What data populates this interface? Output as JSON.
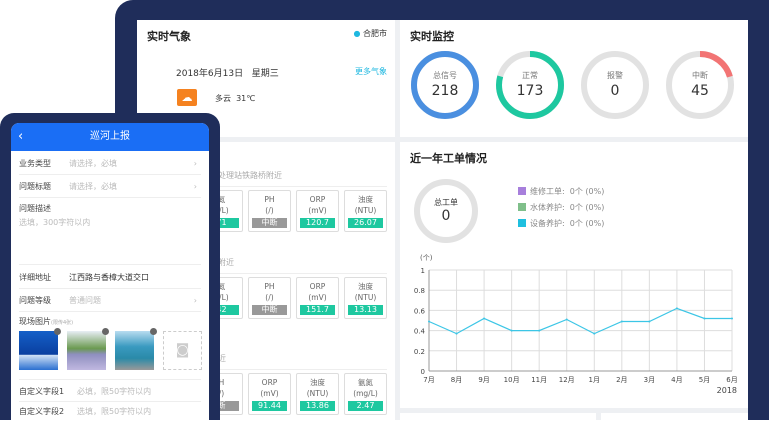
{
  "weather": {
    "title": "实时气象",
    "city": "合肥市",
    "date": "2018年6月13日",
    "weekday": "星期三",
    "more": "更多气象",
    "condition": "多云",
    "temp": "31℃"
  },
  "monitor": {
    "title": "实时监控",
    "rings": [
      {
        "label": "总信号",
        "value": "218",
        "fraction": 1,
        "color": "#4a8fe0"
      },
      {
        "label": "正常",
        "value": "173",
        "fraction": 0.794,
        "color": "#1ec8a0"
      },
      {
        "label": "报警",
        "value": "0",
        "fraction": 0,
        "color": "#e0e0e0"
      },
      {
        "label": "中断",
        "value": "45",
        "fraction": 0.206,
        "color": "#f27474"
      }
    ]
  },
  "water": {
    "stations": [
      {
        "name": "河处理站铁路桥附近",
        "cards": [
          {
            "n": "氮",
            "u": "g/L)",
            "v": "71",
            "off": false
          },
          {
            "n": "PH",
            "u": "(/)",
            "v": "中断",
            "off": true
          },
          {
            "n": "ORP",
            "u": "(mV)",
            "v": "120.7",
            "off": false
          },
          {
            "n": "浊度",
            "u": "(NTU)",
            "v": "26.07",
            "off": false
          }
        ]
      },
      {
        "name": "桥附近",
        "cards": [
          {
            "n": "氮",
            "u": "g/L)",
            "v": "42",
            "off": false
          },
          {
            "n": "PH",
            "u": "(/)",
            "v": "中断",
            "off": true
          },
          {
            "n": "ORP",
            "u": "(mV)",
            "v": "151.7",
            "off": false
          },
          {
            "n": "浊度",
            "u": "(NTU)",
            "v": "13.13",
            "off": false
          }
        ]
      },
      {
        "name": "闸",
        "sub": "附近",
        "cards": [
          {
            "n": "H",
            "u": "/)",
            "v": "断",
            "off": true
          },
          {
            "n": "ORP",
            "u": "(mV)",
            "v": "91.44",
            "off": false
          },
          {
            "n": "浊度",
            "u": "(NTU)",
            "v": "13.86",
            "off": false
          },
          {
            "n": "氨氮",
            "u": "(mg/L)",
            "v": "2.47",
            "off": false
          }
        ]
      }
    ]
  },
  "orders": {
    "title": "近一年工单情况",
    "total_label": "总工单",
    "total": "0",
    "legend": [
      {
        "label": "维修工单:",
        "value": "0个 (0%)",
        "color": "#a77fdc"
      },
      {
        "label": "水体养护:",
        "value": "0个 (0%)",
        "color": "#7fbf8a"
      },
      {
        "label": "设备养护:",
        "value": "0个 (0%)",
        "color": "#1fbfdf"
      }
    ]
  },
  "chart_data": {
    "type": "line",
    "ylabel": "(个)",
    "ylim": [
      0,
      1
    ],
    "yticks": [
      "0",
      "0.2",
      "0.4",
      "0.6",
      "0.8",
      "1"
    ],
    "categories": [
      "7月",
      "8月",
      "9月",
      "10月",
      "11月",
      "12月",
      "1月",
      "2月",
      "3月",
      "4月",
      "5月",
      "6月"
    ],
    "values": [
      0.49,
      0.37,
      0.52,
      0.4,
      0.4,
      0.51,
      0.37,
      0.49,
      0.49,
      0.62,
      0.52,
      0.52
    ],
    "x_note": "2018",
    "color": "#3cc6e6",
    "grid": true
  },
  "phone": {
    "title": "巡河上报",
    "rows": [
      {
        "k": "业务类型",
        "p": "请选择，必填",
        "arrow": true
      },
      {
        "k": "问题标题",
        "p": "请选择，必填",
        "arrow": true
      }
    ],
    "desc_label": "问题描述",
    "desc_placeholder": "选填，300字符以内",
    "addr_label": "详细地址",
    "addr_value": "江西路与香樟大道交口",
    "level_label": "问题等级",
    "level_value": "普通问题",
    "photo_label": "现场图片",
    "photo_hint": "(限传4张)",
    "custom": [
      {
        "k": "自定义字段1",
        "p": "必填，限50字符以内"
      },
      {
        "k": "自定义字段2",
        "p": "选填，限50字符以内"
      }
    ]
  }
}
